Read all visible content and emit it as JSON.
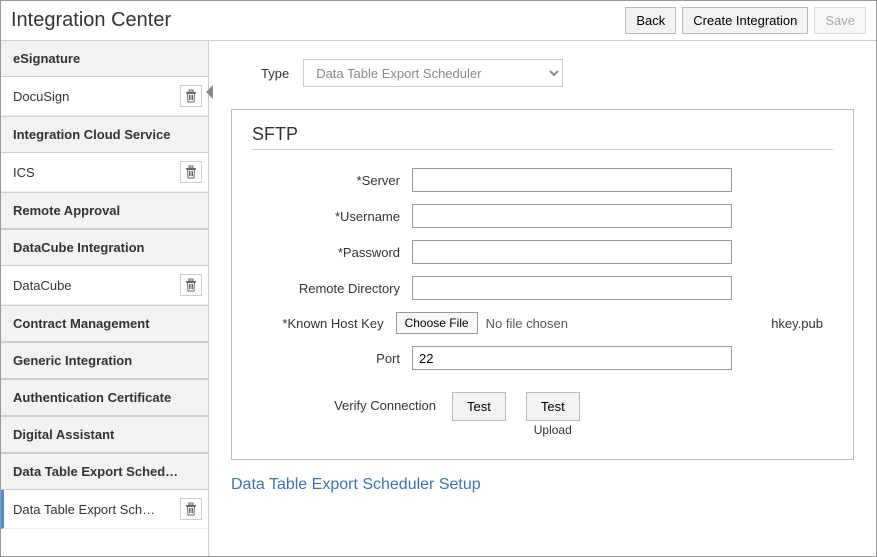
{
  "header": {
    "title": "Integration Center",
    "back": "Back",
    "create": "Create Integration",
    "save": "Save"
  },
  "sidebar": {
    "sections": [
      {
        "title": "eSignature",
        "items": [
          {
            "label": "DocuSign",
            "deletable": true
          }
        ]
      },
      {
        "title": "Integration Cloud Service",
        "items": [
          {
            "label": "ICS",
            "deletable": true
          }
        ]
      },
      {
        "title": "Remote Approval",
        "items": []
      },
      {
        "title": "DataCube Integration",
        "items": [
          {
            "label": "DataCube",
            "deletable": true
          }
        ]
      },
      {
        "title": "Contract Management",
        "items": []
      },
      {
        "title": "Generic Integration",
        "items": []
      },
      {
        "title": "Authentication Certificate",
        "items": []
      },
      {
        "title": "Digital Assistant",
        "items": []
      },
      {
        "title": "Data Table Export Sched…",
        "items": [
          {
            "label": "Data Table Export Sch…",
            "deletable": true,
            "selected": true
          }
        ]
      }
    ]
  },
  "main": {
    "type_label": "Type",
    "type_value": "Data Table Export Scheduler",
    "panel_title": "SFTP",
    "fields": {
      "server_label": "*Server",
      "server_value": "",
      "username_label": "*Username",
      "username_value": "",
      "password_label": "*Password",
      "password_value": "",
      "remote_dir_label": "Remote Directory",
      "remote_dir_value": "",
      "hostkey_label": "*Known Host Key",
      "choose_file": "Choose File",
      "no_file": "No file chosen",
      "hostkey_filename": "hkey.pub",
      "port_label": "Port",
      "port_value": "22"
    },
    "verify": {
      "label": "Verify Connection",
      "test": "Test",
      "test_upload": "Test",
      "upload_sub": "Upload"
    },
    "setup_link": "Data Table Export Scheduler Setup"
  }
}
